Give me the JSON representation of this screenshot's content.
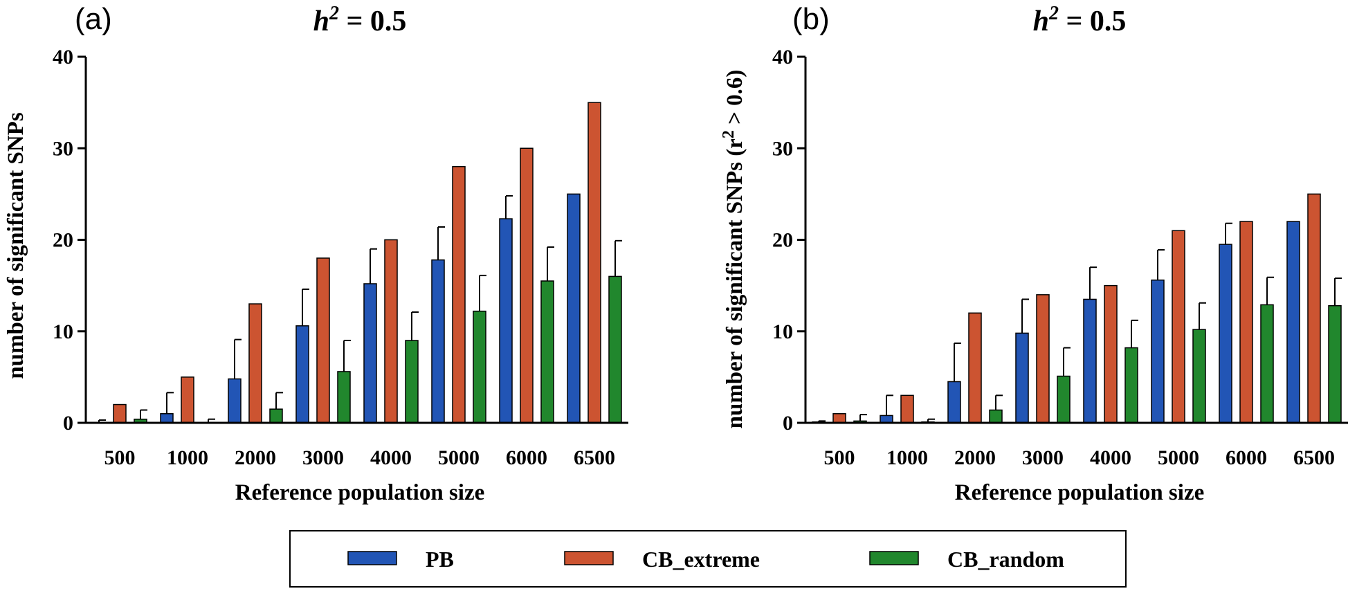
{
  "colors": {
    "PB": "#2255b5",
    "CB_extreme": "#cc5431",
    "CB_random": "#21872d",
    "axis": "#000000"
  },
  "legend": {
    "items": [
      {
        "key": "PB",
        "label": "PB"
      },
      {
        "key": "CB_extreme",
        "label": "CB_extreme"
      },
      {
        "key": "CB_random",
        "label": "CB_random"
      }
    ]
  },
  "chart_data": [
    {
      "type": "bar",
      "panel_label": "(a)",
      "title_prefix": "h",
      "title_sup": "2",
      "title_suffix": " = 0.5",
      "xlabel": "Reference population size",
      "ylabel": "number of significant SNPs",
      "ylabel_sup": "",
      "ylabel_tail": "",
      "ylim": [
        0,
        40
      ],
      "yticks": [
        "0",
        "10",
        "20",
        "30",
        "40"
      ],
      "categories": [
        "500",
        "1000",
        "2000",
        "3000",
        "4000",
        "5000",
        "6000",
        "6500"
      ],
      "series": [
        {
          "name": "PB",
          "values": [
            0,
            1.0,
            4.8,
            10.6,
            15.2,
            17.8,
            22.3,
            25.0
          ],
          "errors": [
            0.3,
            2.3,
            4.3,
            4.0,
            3.8,
            3.6,
            2.5,
            0
          ]
        },
        {
          "name": "CB_extreme",
          "values": [
            2.0,
            5.0,
            13.0,
            18.0,
            20.0,
            28.0,
            30.0,
            35.0
          ],
          "errors": [
            0,
            0,
            0,
            0,
            0,
            0,
            0,
            0
          ]
        },
        {
          "name": "CB_random",
          "values": [
            0.4,
            0,
            1.5,
            5.6,
            9.0,
            12.2,
            15.5,
            16.0
          ],
          "errors": [
            1.0,
            0.4,
            1.8,
            3.4,
            3.1,
            3.9,
            3.7,
            3.9
          ]
        }
      ]
    },
    {
      "type": "bar",
      "panel_label": "(b)",
      "title_prefix": "h",
      "title_sup": "2",
      "title_suffix": " = 0.5",
      "xlabel": "Reference population size",
      "ylabel": "number of significant SNPs (r",
      "ylabel_sup": "2",
      "ylabel_tail": " > 0.6)",
      "ylim": [
        0,
        40
      ],
      "yticks": [
        "0",
        "10",
        "20",
        "30",
        "40"
      ],
      "categories": [
        "500",
        "1000",
        "2000",
        "3000",
        "4000",
        "5000",
        "6000",
        "6500"
      ],
      "series": [
        {
          "name": "PB",
          "values": [
            0.1,
            0.8,
            4.5,
            9.8,
            13.5,
            15.6,
            19.5,
            22.0
          ],
          "errors": [
            0.1,
            2.2,
            4.2,
            3.7,
            3.5,
            3.3,
            2.3,
            0
          ]
        },
        {
          "name": "CB_extreme",
          "values": [
            1.0,
            3.0,
            12.0,
            14.0,
            15.0,
            21.0,
            22.0,
            25.0
          ],
          "errors": [
            0,
            0,
            0,
            0,
            0,
            0,
            0,
            0
          ]
        },
        {
          "name": "CB_random",
          "values": [
            0.2,
            0.1,
            1.4,
            5.1,
            8.2,
            10.2,
            12.9,
            12.8
          ],
          "errors": [
            0.7,
            0.3,
            1.6,
            3.1,
            3.0,
            2.9,
            3.0,
            3.0
          ]
        }
      ]
    }
  ]
}
